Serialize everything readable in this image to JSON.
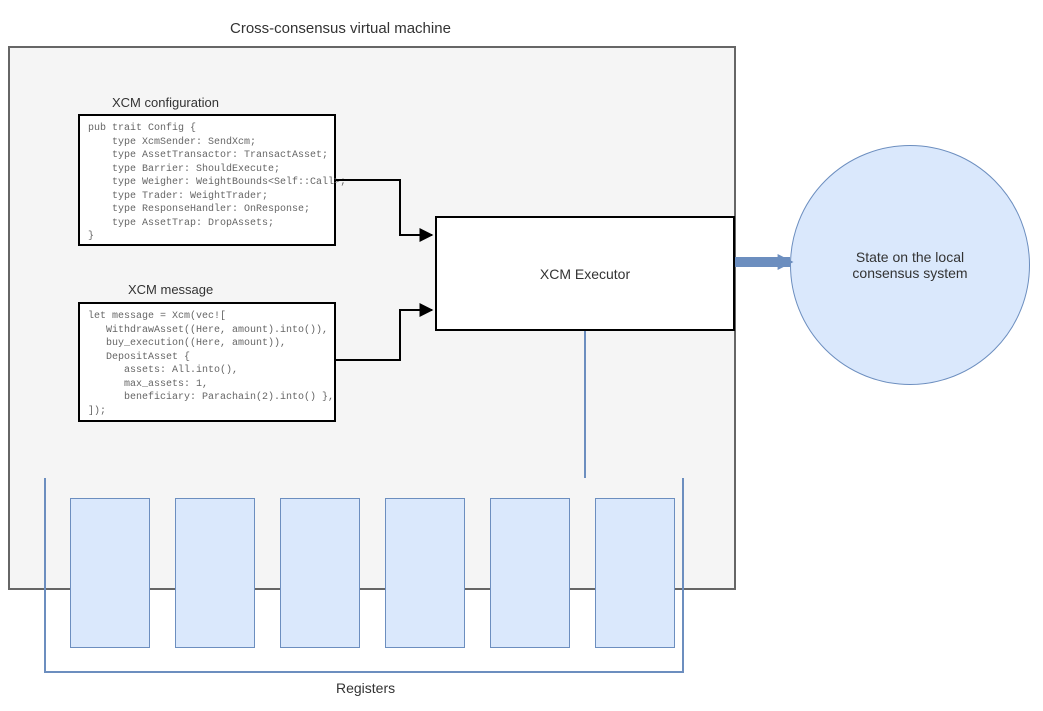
{
  "diagram": {
    "type": "flowchart",
    "title": "Cross-consensus virtual machine",
    "background_color": "#ffffff",
    "vm_box": {
      "border_color": "#666666",
      "fill_color": "#f5f5f5"
    },
    "config_section": {
      "title": "XCM configuration",
      "code": "pub trait Config {\n    type XcmSender: SendXcm;\n    type AssetTransactor: TransactAsset;\n    type Barrier: ShouldExecute;\n    type Weigher: WeightBounds<Self::Call>;\n    type Trader: WeightTrader;\n    type ResponseHandler: OnResponse;\n    type AssetTrap: DropAssets;\n}",
      "box_border": "#000000",
      "box_fill": "#ffffff",
      "font_family": "monospace",
      "font_size": 10,
      "text_color": "#666666"
    },
    "message_section": {
      "title": "XCM message",
      "code": "let message = Xcm(vec![\n   WithdrawAsset((Here, amount).into()),\n   buy_execution((Here, amount)),\n   DepositAsset {\n      assets: All.into(),\n      max_assets: 1,\n      beneficiary: Parachain(2).into() },\n]);",
      "box_border": "#000000",
      "box_fill": "#ffffff",
      "font_family": "monospace",
      "font_size": 10,
      "text_color": "#666666",
      "highlight_bg": "#eeeeee"
    },
    "executor": {
      "label": "XCM Executor",
      "box_border": "#000000",
      "box_fill": "#ffffff",
      "font_size": 14
    },
    "state_circle": {
      "label": "State on the local consensus system",
      "fill_color": "#dae8fc",
      "border_color": "#6c8ebf",
      "font_size": 14
    },
    "registers": {
      "label": "Registers",
      "count": 6,
      "cell_fill": "#dae8fc",
      "cell_border": "#6c8ebf",
      "bracket_border": "#6c8ebf"
    },
    "arrows": {
      "black_stroke": "#000000",
      "blue_stroke": "#6c8ebf",
      "stroke_width": 2
    }
  }
}
